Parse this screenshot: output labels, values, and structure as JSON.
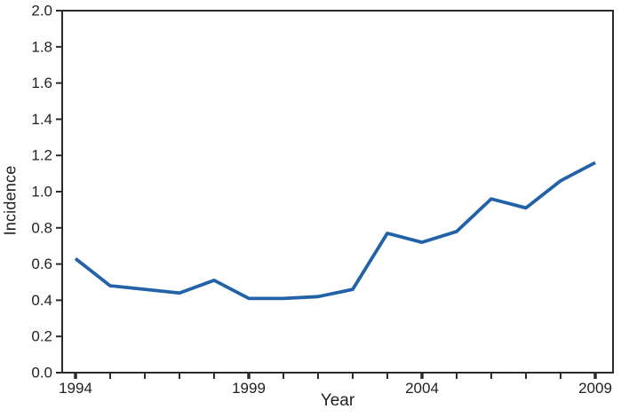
{
  "figure": {
    "background_color": "#ffffff",
    "axis_color": "#2b2a29",
    "text_color": "#231f20"
  },
  "chart_data": {
    "type": "line",
    "title": "",
    "xlabel": "Year",
    "ylabel": "Incidence",
    "x": [
      1994,
      1995,
      1996,
      1997,
      1998,
      1999,
      2000,
      2001,
      2002,
      2003,
      2004,
      2005,
      2006,
      2007,
      2008,
      2009
    ],
    "series": [
      {
        "name": "Incidence",
        "color": "#2262a8",
        "values": [
          0.63,
          0.48,
          0.46,
          0.44,
          0.51,
          0.41,
          0.41,
          0.42,
          0.46,
          0.77,
          0.72,
          0.78,
          0.96,
          0.91,
          1.06,
          1.16
        ]
      }
    ],
    "xlim": [
      1994,
      2009
    ],
    "ylim": [
      0.0,
      2.0
    ],
    "y_ticks": [
      0.0,
      0.2,
      0.4,
      0.6,
      0.8,
      1.0,
      1.2,
      1.4,
      1.6,
      1.8,
      2.0
    ],
    "y_tick_labels": [
      "0.0",
      "0.2",
      "0.4",
      "0.6",
      "0.8",
      "1.0",
      "1.2",
      "1.4",
      "1.6",
      "1.8",
      "2.0"
    ],
    "x_minor_ticks": [
      1994,
      1995,
      1996,
      1997,
      1998,
      1999,
      2000,
      2001,
      2002,
      2003,
      2004,
      2005,
      2006,
      2007,
      2008,
      2009
    ],
    "x_labeled_ticks": [
      1994,
      1999,
      2004,
      2009
    ],
    "x_tick_labels": [
      "1994",
      "1999",
      "2004",
      "2009"
    ],
    "grid": false,
    "legend_position": "none"
  }
}
